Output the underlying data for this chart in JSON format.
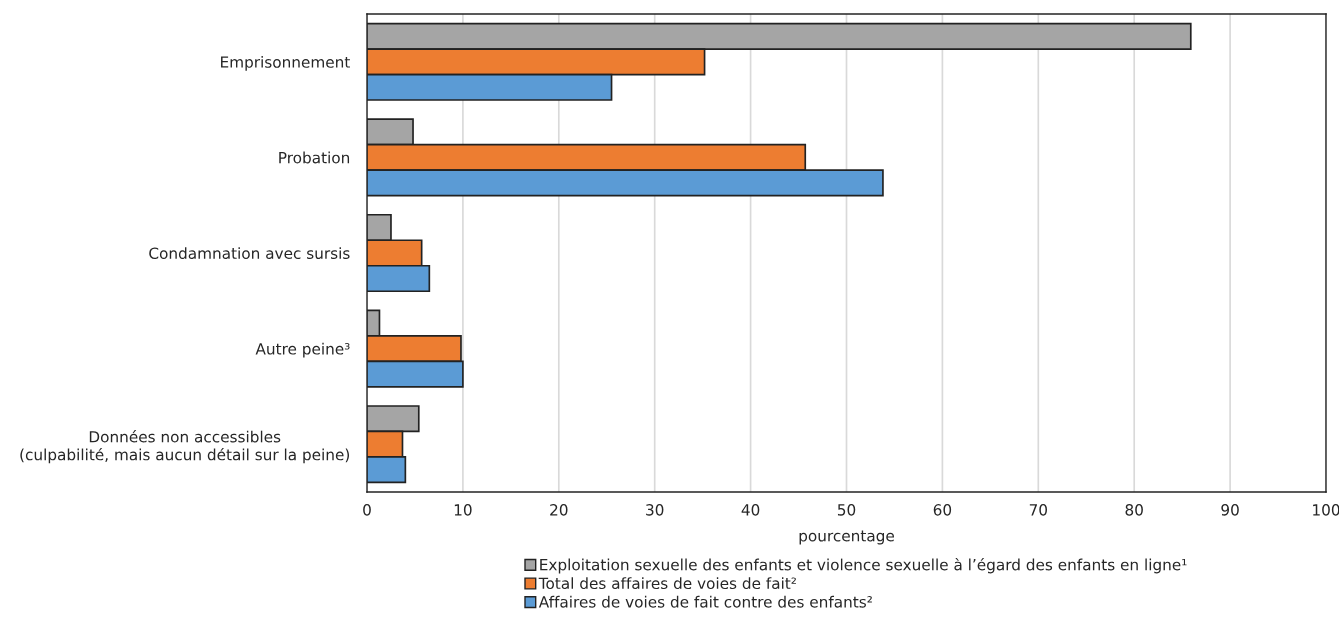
{
  "chart_data": {
    "type": "bar",
    "orientation": "horizontal",
    "xlabel": "pourcentage",
    "categories": [
      "Emprisonnement",
      "Probation",
      "Condamnation avec sursis",
      "Autre peine³",
      "Données non accessibles\n(culpabilité, mais aucun détail sur la peine)"
    ],
    "series": [
      {
        "name": "Exploitation sexuelle des enfants et violence sexuelle à l’égard des enfants en ligne¹",
        "color": "#a5a5a5",
        "values": [
          85.9,
          4.8,
          2.5,
          1.3,
          5.4
        ]
      },
      {
        "name": "Total des affaires de voies de fait²",
        "color": "#ed7d31",
        "values": [
          35.2,
          45.7,
          5.7,
          9.8,
          3.7
        ]
      },
      {
        "name": "Affaires de voies de fait contre des enfants²",
        "color": "#5b9bd5",
        "values": [
          25.5,
          53.8,
          6.5,
          10.0,
          4.0
        ]
      }
    ],
    "xlim": [
      0,
      100
    ],
    "xticks": [
      0,
      10,
      20,
      30,
      40,
      50,
      60,
      70,
      80,
      90,
      100
    ],
    "grid": "x",
    "legend": "bottom"
  }
}
